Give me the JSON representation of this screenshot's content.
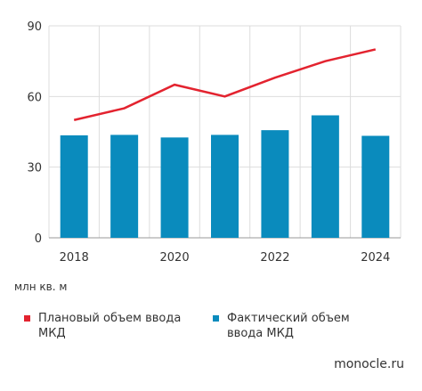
{
  "chart_data": {
    "type": "bar",
    "unit_label": "млн кв. м",
    "x_tick_labels": [
      "2018",
      "2020",
      "2022",
      "2024"
    ],
    "y_tick_labels": [
      "0",
      "30",
      "60",
      "90"
    ],
    "ylim": [
      0,
      90
    ],
    "grid": true,
    "x": [
      2018,
      2019,
      2020,
      2021,
      2022,
      2023,
      2024
    ],
    "series": [
      {
        "name": "Плановый объем ввода МКД",
        "type": "line",
        "color": "#e3232f",
        "values": [
          50,
          55,
          65,
          60,
          68,
          75,
          80
        ]
      },
      {
        "name": "Фактический объем ввода МКД",
        "type": "bar",
        "color": "#0a8bbd",
        "values": [
          43.5,
          43.7,
          42.6,
          43.7,
          45.7,
          52,
          43.3
        ]
      }
    ]
  },
  "legend": [
    {
      "label": "Плановый объем ввода МКД",
      "color": "#e3232f"
    },
    {
      "label": "Фактический объем ввода МКД",
      "color": "#0a8bbd"
    }
  ],
  "source": "monocle.ru"
}
